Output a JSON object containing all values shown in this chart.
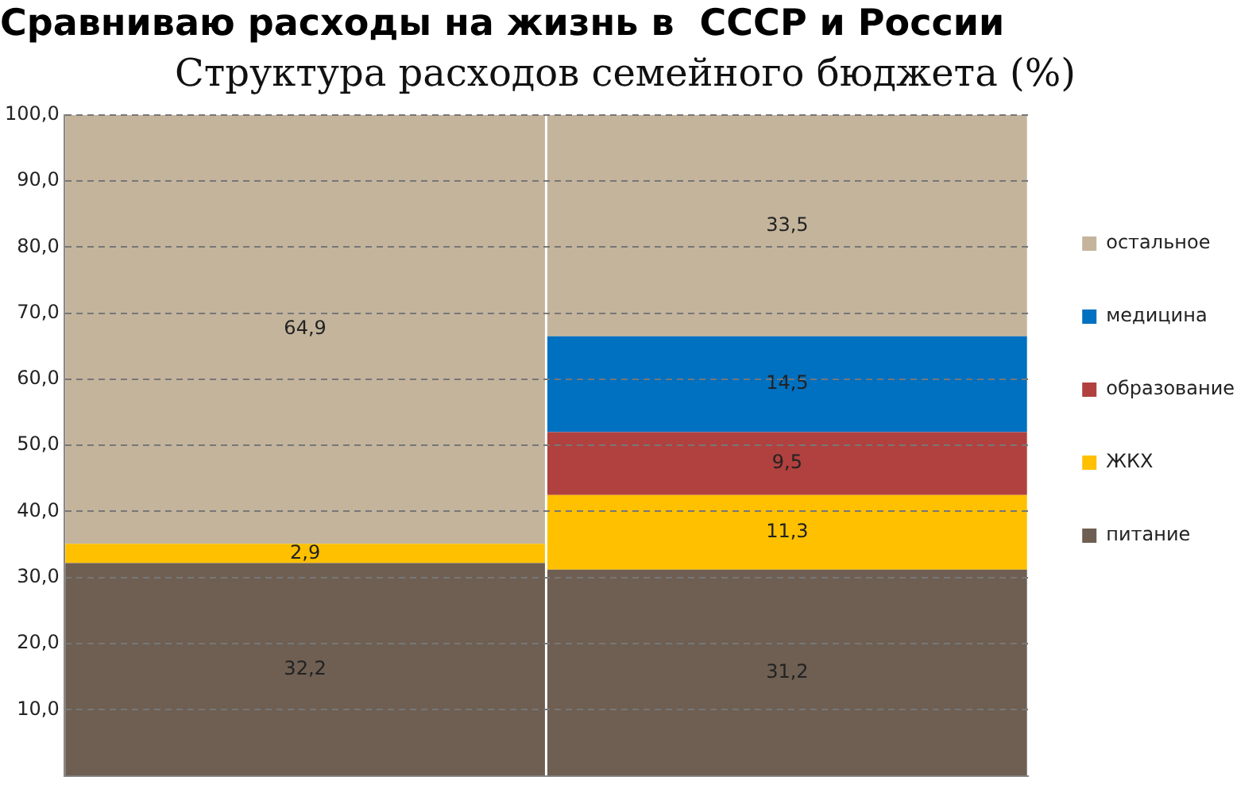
{
  "chart_data": {
    "type": "bar",
    "title": "Сравниваю расходы на жизнь в  СССР и России",
    "subtitle": "Структура расходов семейного бюджета (%)",
    "categories": [
      null,
      null
    ],
    "stacked": true,
    "series": [
      {
        "name": "питание",
        "color": "#6e5f52",
        "values": [
          32.2,
          31.2
        ],
        "value_labels": [
          "32,2",
          "31,2"
        ]
      },
      {
        "name": "ЖКХ",
        "color": "#ffc000",
        "values": [
          2.9,
          11.3
        ],
        "value_labels": [
          "2,9",
          "11,3"
        ]
      },
      {
        "name": "образование",
        "color": "#b0413e",
        "values": [
          null,
          9.5
        ],
        "value_labels": [
          null,
          "9,5"
        ]
      },
      {
        "name": "медицина",
        "color": "#0070c0",
        "values": [
          null,
          14.5
        ],
        "value_labels": [
          null,
          "14,5"
        ]
      },
      {
        "name": "остальное",
        "color": "#c4b49c",
        "values": [
          64.9,
          33.5
        ],
        "value_labels": [
          "64,9",
          "33,5"
        ]
      }
    ],
    "ylim": [
      0,
      100
    ],
    "yticks": [
      {
        "value": 10,
        "label": "10,0"
      },
      {
        "value": 20,
        "label": "20,0"
      },
      {
        "value": 30,
        "label": "30,0"
      },
      {
        "value": 40,
        "label": "40,0"
      },
      {
        "value": 50,
        "label": "50,0"
      },
      {
        "value": 60,
        "label": "60,0"
      },
      {
        "value": 70,
        "label": "70,0"
      },
      {
        "value": 80,
        "label": "80,0"
      },
      {
        "value": 90,
        "label": "90,0"
      },
      {
        "value": 100,
        "label": "100,0"
      }
    ],
    "grid": "y",
    "legend": "right",
    "tick_labels": "y"
  }
}
